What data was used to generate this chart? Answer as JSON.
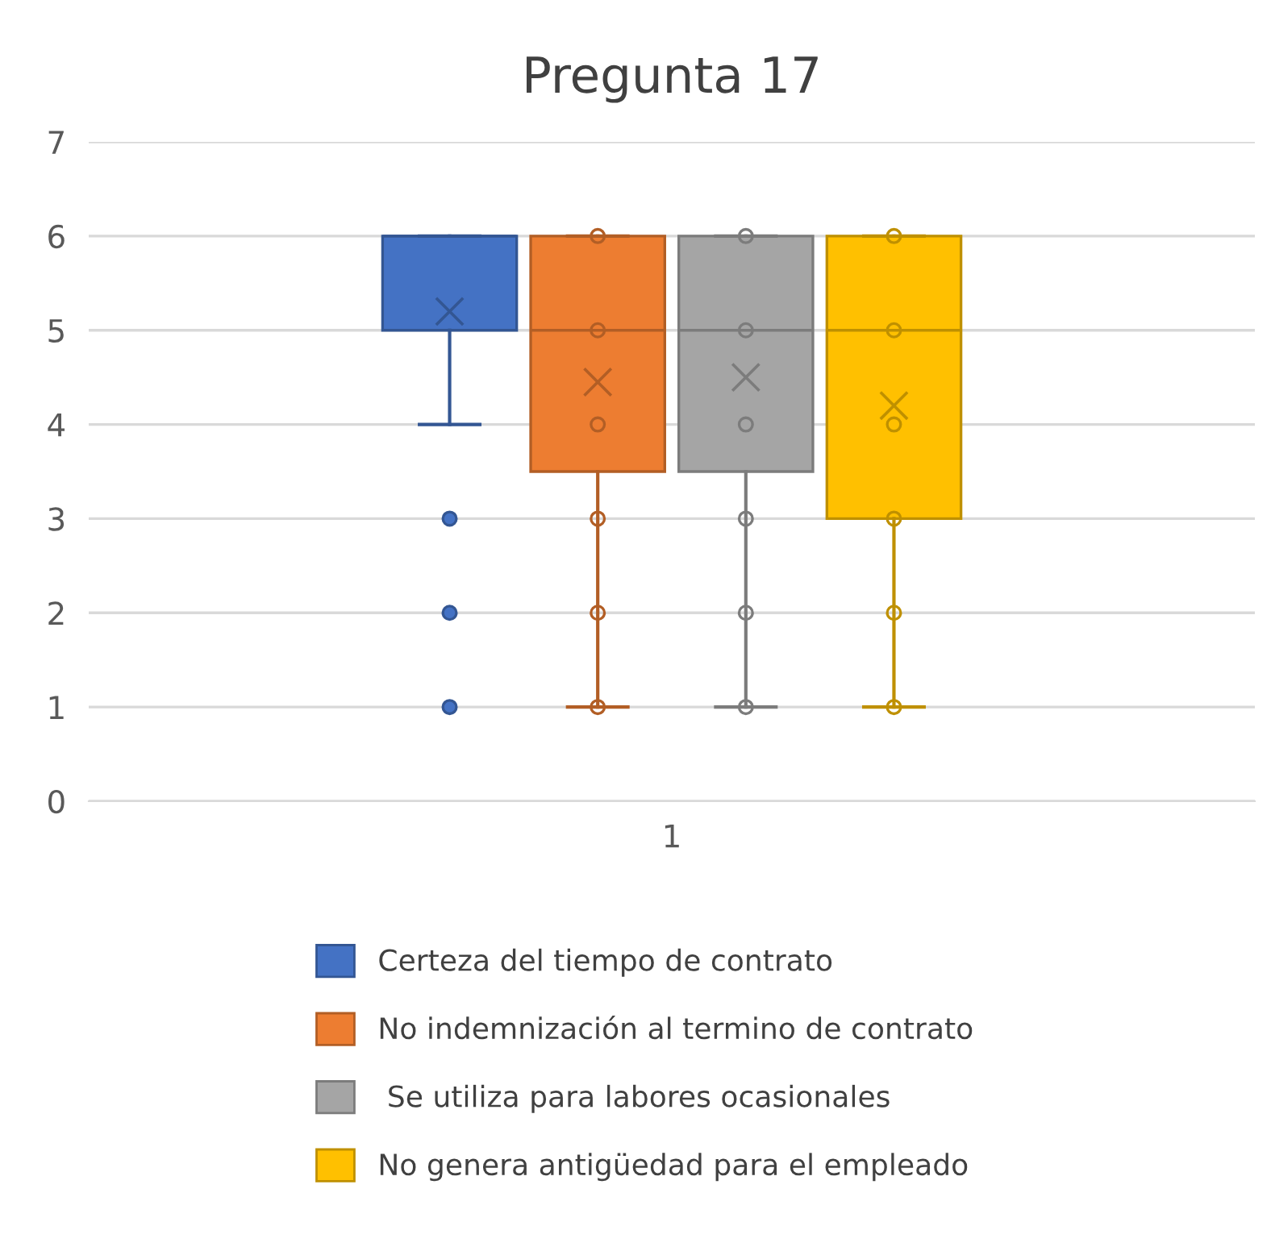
{
  "chart_data": {
    "type": "box",
    "title": "Pregunta 17",
    "categories": [
      "1"
    ],
    "series": [
      {
        "name": "Certeza del tiempo de contrato",
        "color": "#4472c4",
        "boxes": [
          {
            "low": 4,
            "q1": 5,
            "median": 6,
            "q3": 6,
            "high": 6,
            "mean": 5.2,
            "outliers": [
              3,
              2,
              1
            ]
          }
        ]
      },
      {
        "name": "No indemnización al termino de contrato",
        "color": "#ed7d31",
        "boxes": [
          {
            "low": 1,
            "q1": 3.5,
            "median": 5,
            "q3": 6,
            "high": 6,
            "mean": 4.45,
            "outliers": [
              6,
              5,
              4,
              3,
              2,
              1
            ]
          }
        ]
      },
      {
        "name": " Se utiliza para labores ocasionales",
        "color": "#a5a5a5",
        "boxes": [
          {
            "low": 1,
            "q1": 3.5,
            "median": 5,
            "q3": 6,
            "high": 6,
            "mean": 4.5,
            "outliers": [
              6,
              5,
              4,
              3,
              2,
              1
            ]
          }
        ]
      },
      {
        "name": "No genera antigüedad para el empleado",
        "color": "#ffc000",
        "boxes": [
          {
            "low": 1,
            "q1": 3,
            "median": 5,
            "q3": 6,
            "high": 6,
            "mean": 4.2,
            "outliers": [
              6,
              5,
              4,
              3,
              2,
              1
            ]
          }
        ]
      }
    ],
    "ylim": [
      0,
      7
    ],
    "yticks": [
      0,
      1,
      2,
      3,
      4,
      5,
      6,
      7
    ],
    "grid": "y",
    "legend": "bottom"
  }
}
